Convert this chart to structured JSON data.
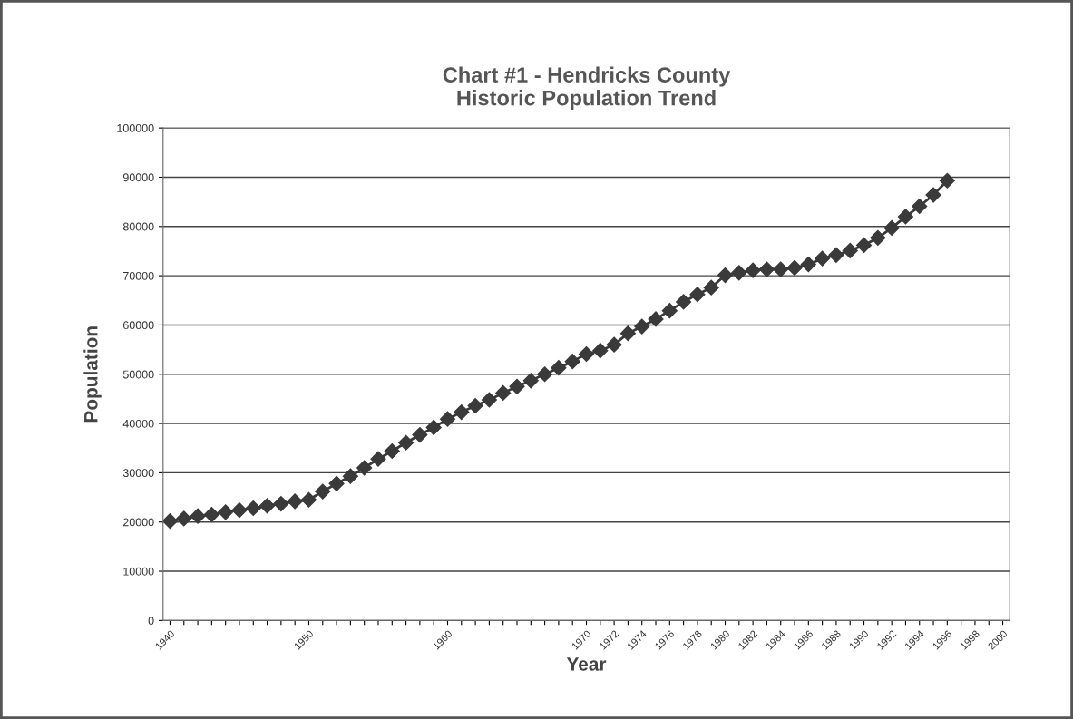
{
  "chart_data": {
    "type": "line",
    "title": "Chart #1 - Hendricks County\nHistoric Population Trend",
    "xlabel": "Year",
    "ylabel": "Population",
    "categories": [
      "1940",
      null,
      null,
      null,
      null,
      null,
      null,
      null,
      null,
      null,
      "1950",
      null,
      null,
      null,
      null,
      null,
      null,
      null,
      null,
      null,
      "1960",
      null,
      null,
      null,
      null,
      null,
      null,
      null,
      null,
      null,
      "1970",
      null,
      "1972",
      null,
      "1974",
      null,
      "1976",
      null,
      "1978",
      null,
      "1980",
      null,
      "1982",
      null,
      "1984",
      null,
      "1986",
      null,
      "1988",
      null,
      "1990",
      null,
      "1992",
      null,
      "1994",
      null,
      "1996",
      null,
      "1998",
      null,
      "2000"
    ],
    "series": [
      {
        "color": "#3a3a3a",
        "values": [
          20200,
          20700,
          21200,
          21500,
          22000,
          22400,
          22800,
          23300,
          23700,
          24200,
          24500,
          26200,
          27800,
          29300,
          31000,
          32800,
          34400,
          36100,
          37700,
          39200,
          40900,
          42300,
          43600,
          44800,
          46200,
          47500,
          48700,
          50000,
          51300,
          52600,
          54100,
          54800,
          56000,
          58300,
          59700,
          61200,
          62900,
          64700,
          66200,
          67600,
          70100,
          70600,
          71100,
          71300,
          71300,
          71600,
          72300,
          73500,
          74200,
          75100,
          76200,
          77700,
          79700,
          82000,
          84100,
          86400,
          89300,
          null,
          null,
          null,
          null
        ]
      }
    ],
    "ylim": [
      0,
      100000
    ],
    "yticks": [
      0,
      10000,
      20000,
      30000,
      40000,
      50000,
      60000,
      70000,
      80000,
      90000,
      100000
    ],
    "grid": "y",
    "marker": "diamond",
    "line_style": "solid",
    "legend": false
  }
}
